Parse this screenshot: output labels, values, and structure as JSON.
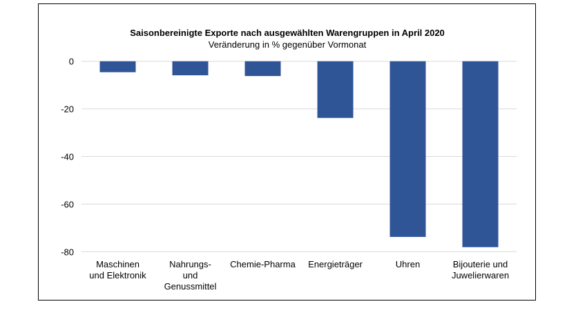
{
  "chart_data": {
    "type": "bar",
    "title": "Saisonbereinigte Exporte nach ausgewählten Warengruppen in April 2020",
    "subtitle": "Veränderung in % gegenüber Vormonat",
    "xlabel": "",
    "ylabel": "",
    "categories": [
      [
        "Maschinen",
        "und Elektronik"
      ],
      [
        "Nahrungs-",
        "und",
        "Genussmittel"
      ],
      [
        "Chemie-Pharma"
      ],
      [
        "Energieträger"
      ],
      [
        "Uhren"
      ],
      [
        "Bijouterie und",
        "Juwelierwaren"
      ]
    ],
    "values": [
      -4.6,
      -5.9,
      -6.2,
      -23.8,
      -73.8,
      -78.1
    ],
    "ylim": [
      -80,
      0
    ],
    "yticks": [
      "0",
      "-20",
      "-40",
      "-60",
      "-80"
    ],
    "ytick_values": [
      0,
      -20,
      -40,
      -60,
      -80
    ],
    "grid": true,
    "bar_color": "#2F5597",
    "grid_color": "#D9D9D9"
  }
}
